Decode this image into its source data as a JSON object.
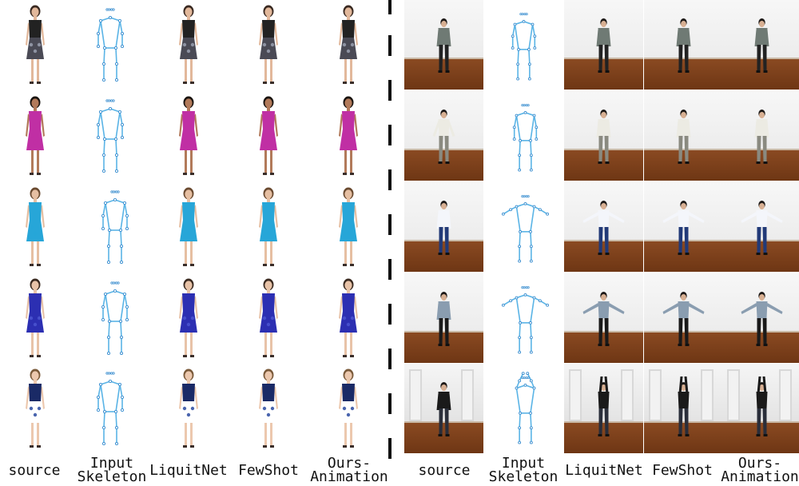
{
  "left_labels": [
    {
      "line1": "source",
      "line2": ""
    },
    {
      "line1": "Input",
      "line2": "Skeleton"
    },
    {
      "line1": "LiquitNet",
      "line2": ""
    },
    {
      "line1": "FewShot",
      "line2": ""
    },
    {
      "line1": "Ours-",
      "line2": "Animation"
    }
  ],
  "right_labels": [
    {
      "line1": "source",
      "line2": ""
    },
    {
      "line1": "Input",
      "line2": "Skeleton"
    },
    {
      "line1": "LiquitNet",
      "line2": ""
    },
    {
      "line1": "FewShot",
      "line2": ""
    },
    {
      "line1": "Ours-",
      "line2": "Animation"
    }
  ],
  "fashion_rows": [
    {
      "top": "#222222",
      "dress": "#4a4a55",
      "pattern": "#9aa0b0",
      "skin": "#e2b89b",
      "hair": "#3a2a22",
      "pose": "stand"
    },
    {
      "top": "#c02fa4",
      "dress": "#c02fa4",
      "pattern": "#c02fa4",
      "skin": "#b27a5a",
      "hair": "#1a1410",
      "pose": "stand"
    },
    {
      "top": "#27a6d8",
      "dress": "#27a6d8",
      "pattern": "#27a6d8",
      "skin": "#e6bfa2",
      "hair": "#6a4a30",
      "pose": "stand"
    },
    {
      "top": "#2c2fb2",
      "dress": "#2c2fb2",
      "pattern": "#4b55d0",
      "skin": "#e8c3a8",
      "hair": "#3a2a20",
      "pose": "stand"
    },
    {
      "top": "#1a2a66",
      "dress": "#ffffff",
      "pattern": "#2a4aa0",
      "skin": "#ecc8ae",
      "hair": "#7a5a3a",
      "pose": "stand"
    }
  ],
  "video_rows": [
    {
      "shirt": "#6f7a74",
      "pants": "#222222",
      "source_pose": "down",
      "target_pose": "down"
    },
    {
      "shirt": "#ecebe3",
      "pants": "#8a8a80",
      "source_pose": "out",
      "target_pose": "down"
    },
    {
      "shirt": "#f4f6fb",
      "pants": "#223a78",
      "source_pose": "down",
      "target_pose": "wide"
    },
    {
      "shirt": "#8a9db0",
      "pants": "#1a1a1a",
      "source_pose": "down",
      "target_pose": "wide"
    },
    {
      "shirt": "#1a1a1a",
      "pants": "#2a2e3a",
      "source_pose": "down",
      "target_pose": "up"
    }
  ],
  "colors": {
    "skeleton": "#5ab4e6",
    "skeleton_joint": "#3c8fd0"
  }
}
